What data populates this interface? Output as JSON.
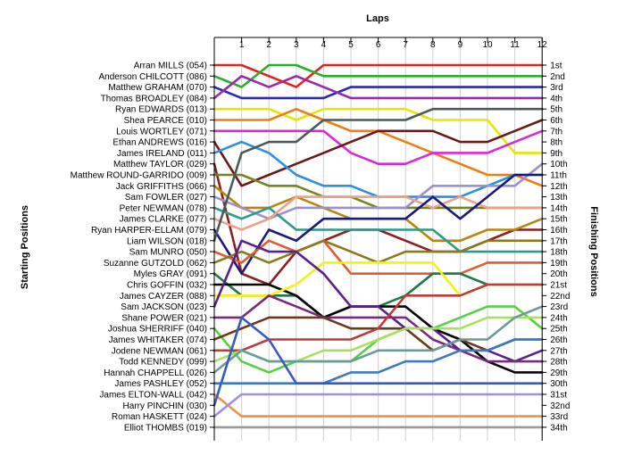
{
  "chart_data": {
    "type": "line",
    "title": "",
    "x_title": "Laps",
    "left_title": "Starting Positions",
    "right_title": "Finishing Positions",
    "laps": [
      "1",
      "2",
      "3",
      "4",
      "5",
      "6",
      "7",
      "8",
      "9",
      "10",
      "11",
      "12"
    ],
    "finish_labels": [
      "1st",
      "2nd",
      "3rd",
      "4th",
      "5th",
      "6th",
      "7th",
      "8th",
      "9th",
      "10th",
      "11th",
      "12th",
      "13th",
      "14th",
      "15th",
      "16th",
      "17th",
      "18th",
      "19th",
      "20th",
      "21st",
      "22nd",
      "23rd",
      "24th",
      "25th",
      "26th",
      "27th",
      "28th",
      "29th",
      "30th",
      "31st",
      "32nd",
      "33rd",
      "34th"
    ],
    "grid": "vertical",
    "series": [
      {
        "name": "Arran MILLS (054)",
        "color": "#e4231e",
        "positions": [
          1,
          1,
          2,
          3,
          1,
          1,
          1,
          1,
          1,
          1,
          1,
          1,
          1
        ]
      },
      {
        "name": "Anderson CHILCOTT (086)",
        "color": "#2cae2c",
        "positions": [
          2,
          3,
          1,
          1,
          2,
          2,
          2,
          2,
          2,
          2,
          2,
          2,
          2
        ]
      },
      {
        "name": "Matthew GRAHAM (070)",
        "color": "#2929b2",
        "positions": [
          3,
          4,
          4,
          4,
          4,
          3,
          3,
          3,
          3,
          3,
          3,
          3,
          3
        ]
      },
      {
        "name": "Thomas BROADLEY (084)",
        "color": "#9a2aa8",
        "positions": [
          4,
          2,
          3,
          2,
          3,
          4,
          4,
          4,
          4,
          4,
          4,
          4,
          4
        ]
      },
      {
        "name": "Ryan EDWARDS (013)",
        "color": "#e6e600",
        "positions": [
          5,
          5,
          5,
          6,
          5,
          5,
          5,
          5,
          6,
          6,
          6,
          9,
          9
        ]
      },
      {
        "name": "Shea PEARCE (010)",
        "color": "#f07d11",
        "positions": [
          6,
          6,
          6,
          5,
          6,
          7,
          7,
          8,
          9,
          10,
          11,
          11,
          12
        ]
      },
      {
        "name": "Louis WORTLEY (071)",
        "color": "#d928d9",
        "positions": [
          7,
          7,
          7,
          7,
          7,
          9,
          10,
          10,
          9,
          9,
          9,
          8,
          7
        ]
      },
      {
        "name": "Ethan ANDREWS (016)",
        "color": "#6a1a1a",
        "positions": [
          8,
          12,
          11,
          10,
          9,
          8,
          7,
          7,
          7,
          8,
          8,
          7,
          6
        ]
      },
      {
        "name": "James IRELAND (011)",
        "color": "#2e8fe0",
        "positions": [
          9,
          8,
          9,
          11,
          12,
          12,
          13,
          13,
          13,
          13,
          12,
          11,
          11
        ]
      },
      {
        "name": "Matthew TAYLOR (029)",
        "color": "#8c2020",
        "positions": [
          10,
          20,
          21,
          18,
          17,
          16,
          16,
          17,
          18,
          18,
          17,
          16,
          16
        ]
      },
      {
        "name": "Matthew ROUND-GARRIDO (009)",
        "color": "#77851e",
        "positions": [
          11,
          11,
          12,
          12,
          13,
          13,
          14,
          14,
          14,
          14,
          14,
          14,
          14
        ]
      },
      {
        "name": "Jack GRIFFITHS (066)",
        "color": "#b8860b",
        "positions": [
          12,
          14,
          14,
          13,
          14,
          15,
          15,
          15,
          17,
          17,
          16,
          16,
          15
        ]
      },
      {
        "name": "Sam FOWLER (027)",
        "color": "#9e8fd0",
        "positions": [
          13,
          14,
          15,
          14,
          14,
          14,
          14,
          14,
          12,
          12,
          12,
          12,
          10
        ]
      },
      {
        "name": "Peter NEWMAN (078)",
        "color": "#2c9a8c",
        "positions": [
          14,
          15,
          14,
          16,
          16,
          16,
          16,
          16,
          16,
          18,
          18,
          18,
          18
        ]
      },
      {
        "name": "James CLARKE (077)",
        "color": "#f0a088",
        "positions": [
          15,
          16,
          15,
          13,
          13,
          13,
          13,
          13,
          14,
          13,
          14,
          14,
          14
        ]
      },
      {
        "name": "Ryan HARPER-ELLAM (079)",
        "color": "#1a1a7a",
        "positions": [
          16,
          20,
          16,
          17,
          15,
          15,
          15,
          15,
          13,
          15,
          13,
          11,
          11
        ]
      },
      {
        "name": "Liam WILSON (018)",
        "color": "#4a5a5a",
        "positions": [
          17,
          9,
          8,
          8,
          6,
          6,
          6,
          6,
          5,
          5,
          5,
          5,
          5
        ]
      },
      {
        "name": "Sam MUNRO (050)",
        "color": "#e55a30",
        "positions": [
          18,
          19,
          17,
          18,
          17,
          20,
          20,
          20,
          20,
          20,
          19,
          19,
          19
        ]
      },
      {
        "name": "Suzanne GUTZOLD (062)",
        "color": "#8a7a1a",
        "positions": [
          19,
          18,
          19,
          18,
          17,
          18,
          19,
          18,
          18,
          18,
          17,
          17,
          17
        ]
      },
      {
        "name": "Myles GRAY (091)",
        "color": "#1f7a4a",
        "positions": [
          20,
          22,
          22,
          22,
          24,
          23,
          23,
          22,
          20,
          20,
          21,
          21,
          21
        ]
      },
      {
        "name": "Chris GOFFIN (032)",
        "color": "#050505",
        "positions": [
          21,
          21,
          21,
          22,
          24,
          23,
          23,
          23,
          25,
          26,
          28,
          29,
          29
        ]
      },
      {
        "name": "James CAYZER (088)",
        "color": "#f5f210",
        "positions": [
          22,
          22,
          22,
          21,
          19,
          19,
          19,
          19,
          19,
          22,
          21,
          21,
          21
        ]
      },
      {
        "name": "Sam JACKSON (023)",
        "color": "#5a2090",
        "positions": [
          23,
          17,
          18,
          18,
          20,
          23,
          23,
          25,
          25,
          27,
          27,
          28,
          27
        ]
      },
      {
        "name": "Shane POWER (021)",
        "color": "#7a2a7a",
        "positions": [
          24,
          24,
          22,
          23,
          24,
          24,
          24,
          24,
          26,
          27,
          28,
          28,
          28
        ]
      },
      {
        "name": "Joshua SHERRIFF (040)",
        "color": "#55d040",
        "positions": [
          25,
          28,
          29,
          28,
          28,
          28,
          26,
          25,
          25,
          24,
          23,
          23,
          25
        ]
      },
      {
        "name": "James WHITAKER (074)",
        "color": "#6a3a1a",
        "positions": [
          26,
          25,
          24,
          24,
          24,
          25,
          25,
          25,
          27,
          26,
          27,
          26,
          26
        ]
      },
      {
        "name": "Jodene NEWMAN (061)",
        "color": "#c03a3a",
        "positions": [
          27,
          27,
          26,
          26,
          26,
          26,
          25,
          22,
          22,
          22,
          21,
          21,
          21
        ]
      },
      {
        "name": "Todd KENNEDY (099)",
        "color": "#a8e060",
        "positions": [
          28,
          27,
          28,
          28,
          27,
          27,
          26,
          25,
          25,
          25,
          24,
          24,
          24
        ]
      },
      {
        "name": "Hannah CHAPPELL (026)",
        "color": "#6a9a9a",
        "positions": [
          29,
          27,
          28,
          28,
          28,
          28,
          27,
          27,
          27,
          26,
          26,
          24,
          23
        ]
      },
      {
        "name": "James PASHLEY (052)",
        "color": "#3a7ac0",
        "positions": [
          30,
          30,
          30,
          30,
          30,
          29,
          29,
          28,
          28,
          27,
          27,
          26,
          26
        ]
      },
      {
        "name": "James ELTON-WALL (042)",
        "color": "#f09040",
        "positions": [
          31,
          33,
          33,
          33,
          33,
          33,
          33,
          33,
          33,
          33,
          33,
          33,
          33
        ]
      },
      {
        "name": "Harry PINCHIN (030)",
        "color": "#3a5ac0",
        "positions": [
          32,
          24,
          26,
          30,
          30,
          30,
          30,
          30,
          30,
          30,
          30,
          30,
          30
        ]
      },
      {
        "name": "Roman HASKETT (024)",
        "color": "#a090e0",
        "positions": [
          33,
          31,
          31,
          31,
          31,
          31,
          31,
          31,
          31,
          31,
          31,
          31,
          31
        ]
      },
      {
        "name": "Elliot THOMBS (019)",
        "color": "#9a9a9a",
        "positions": [
          34,
          34,
          34,
          34,
          34,
          34,
          34,
          34,
          34,
          34,
          34,
          34,
          34
        ]
      }
    ]
  }
}
